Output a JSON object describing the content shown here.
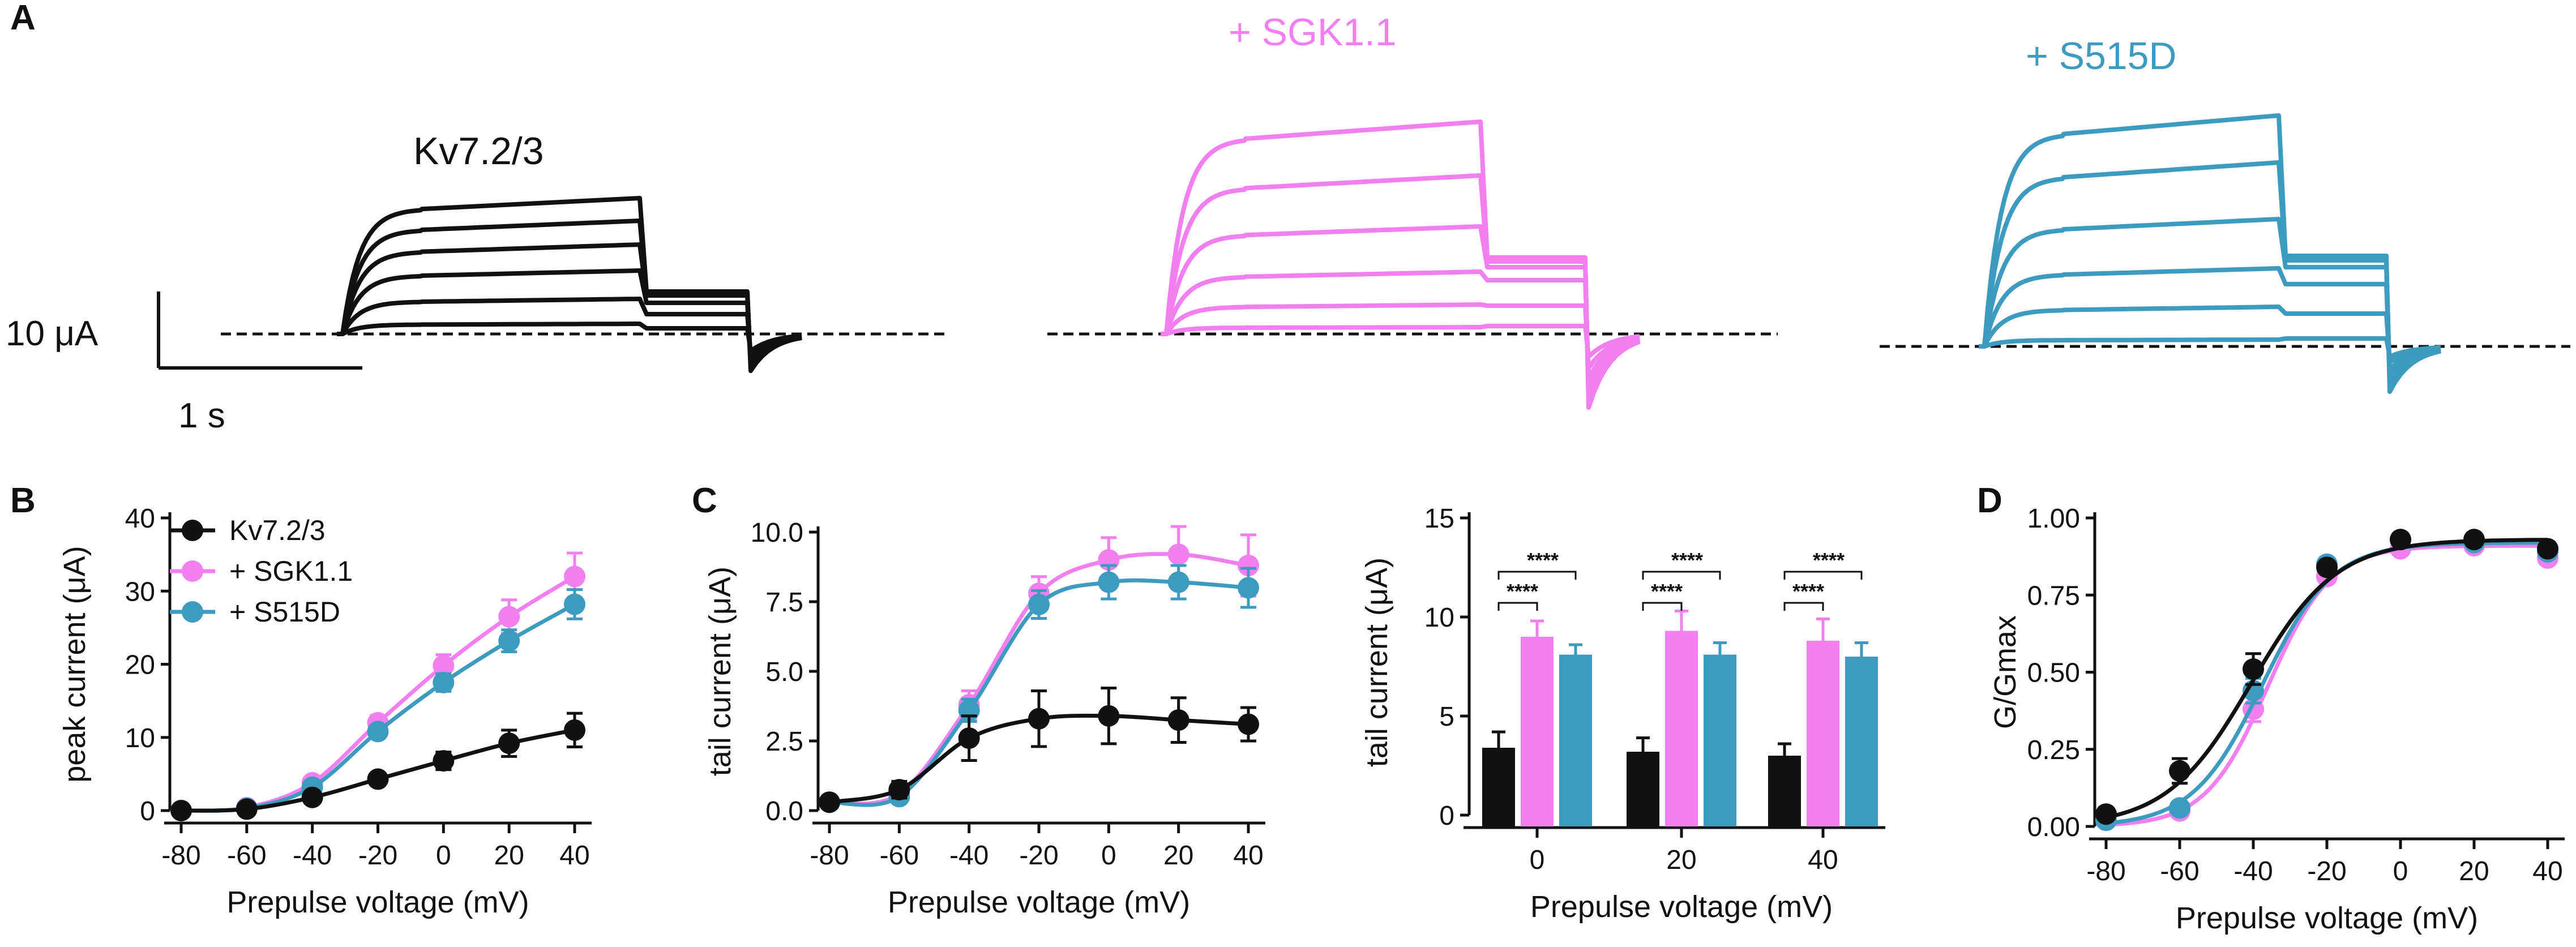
{
  "colors": {
    "kv": "#111111",
    "sgk": "#f27ff0",
    "s515d": "#3d9bbf"
  },
  "panel_letters": {
    "a": "A",
    "b": "B",
    "c": "C",
    "d": "D"
  },
  "traces": {
    "kv_title": "Kv7.2/3",
    "sgk_title": "+ SGK1.1",
    "s515d_title": "+ S515D",
    "scale_current": "10  μA",
    "scale_time": "1 s"
  },
  "chart_data": [
    {
      "id": "B",
      "type": "line",
      "title": "",
      "xlabel": "Prepulse voltage (mV)",
      "ylabel": "peak current (μA)",
      "xlim": [
        -80,
        40
      ],
      "ylim": [
        0,
        40
      ],
      "x_ticks": [
        -80,
        -60,
        -40,
        -20,
        0,
        20,
        40
      ],
      "y_ticks": [
        0,
        10,
        20,
        30,
        40
      ],
      "legend": [
        "Kv7.2/3",
        "+ SGK1.1",
        "+ S515D"
      ],
      "x": [
        -80,
        -60,
        -40,
        -20,
        0,
        20,
        40
      ],
      "series": [
        {
          "name": "Kv7.2/3",
          "values": [
            0,
            0.2,
            1.8,
            4.3,
            6.8,
            9.2,
            11.0
          ],
          "errors": [
            0.3,
            0.3,
            0.5,
            0.7,
            1.2,
            1.8,
            2.3
          ]
        },
        {
          "name": "+ SGK1.1",
          "values": [
            0,
            0.4,
            3.8,
            12.0,
            19.8,
            26.5,
            32.0
          ],
          "errors": [
            0.3,
            0.3,
            0.6,
            1.0,
            1.5,
            2.3,
            3.2
          ]
        },
        {
          "name": "+ S515D",
          "values": [
            0,
            0.3,
            3.2,
            10.8,
            17.5,
            23.2,
            28.2
          ],
          "errors": [
            0.3,
            0.3,
            0.5,
            0.8,
            1.2,
            1.5,
            2.0
          ]
        }
      ]
    },
    {
      "id": "C-left",
      "type": "line",
      "title": "",
      "xlabel": "Prepulse voltage (mV)",
      "ylabel": "tail current (μA)",
      "xlim": [
        -80,
        40
      ],
      "ylim": [
        0,
        10
      ],
      "x_ticks": [
        -80,
        -60,
        -40,
        -20,
        0,
        20,
        40
      ],
      "y_ticks": [
        "0.0",
        "2.5",
        "5.0",
        "7.5",
        "10.0"
      ],
      "x": [
        -80,
        -60,
        -40,
        -20,
        0,
        20,
        40
      ],
      "series": [
        {
          "name": "Kv7.2/3",
          "values": [
            0.3,
            0.75,
            2.6,
            3.3,
            3.4,
            3.25,
            3.1
          ],
          "errors": [
            0.2,
            0.3,
            0.8,
            1.0,
            1.0,
            0.8,
            0.6
          ]
        },
        {
          "name": "+ SGK1.1",
          "values": [
            0.3,
            0.6,
            3.8,
            7.8,
            9.0,
            9.2,
            8.8
          ],
          "errors": [
            0.2,
            0.2,
            0.5,
            0.6,
            0.8,
            1.0,
            1.1
          ]
        },
        {
          "name": "+ S515D",
          "values": [
            0.3,
            0.5,
            3.6,
            7.4,
            8.2,
            8.2,
            8.0
          ],
          "errors": [
            0.2,
            0.2,
            0.4,
            0.5,
            0.6,
            0.6,
            0.7
          ]
        }
      ]
    },
    {
      "id": "C-right",
      "type": "bar",
      "title": "",
      "xlabel": "Prepulse voltage (mV)",
      "ylabel": "tail current (μA)",
      "ylim": [
        0,
        15
      ],
      "y_ticks": [
        0,
        5,
        10,
        15
      ],
      "categories": [
        "0",
        "20",
        "40"
      ],
      "series": [
        {
          "name": "Kv7.2/3",
          "values": [
            3.4,
            3.2,
            3.0
          ],
          "errors": [
            0.8,
            0.7,
            0.6
          ]
        },
        {
          "name": "+ SGK1.1",
          "values": [
            9.0,
            9.3,
            8.8
          ],
          "errors": [
            0.8,
            1.0,
            1.1
          ]
        },
        {
          "name": "+ S515D",
          "values": [
            8.1,
            8.1,
            8.0
          ],
          "errors": [
            0.5,
            0.6,
            0.7
          ]
        }
      ],
      "significance": "****"
    },
    {
      "id": "D",
      "type": "line",
      "title": "",
      "xlabel": "Prepulse voltage (mV)",
      "ylabel": "G/Gmax",
      "xlim": [
        -80,
        40
      ],
      "ylim": [
        0,
        1
      ],
      "x_ticks": [
        -80,
        -60,
        -40,
        -20,
        0,
        20,
        40
      ],
      "y_ticks": [
        "0.00",
        "0.25",
        "0.50",
        "0.75",
        "1.00"
      ],
      "x": [
        -80,
        -60,
        -40,
        -20,
        0,
        20,
        40
      ],
      "series": [
        {
          "name": "Kv7.2/3",
          "values": [
            0.04,
            0.18,
            0.51,
            0.84,
            0.93,
            0.93,
            0.9
          ],
          "errors": [
            0.01,
            0.04,
            0.05,
            0.02,
            0.02,
            0.02,
            0.02
          ]
        },
        {
          "name": "+ SGK1.1",
          "values": [
            0.02,
            0.05,
            0.38,
            0.81,
            0.9,
            0.91,
            0.87
          ],
          "errors": [
            0.01,
            0.02,
            0.04,
            0.02,
            0.01,
            0.01,
            0.02
          ]
        },
        {
          "name": "+ S515D",
          "values": [
            0.02,
            0.06,
            0.44,
            0.85,
            0.93,
            0.92,
            0.89
          ],
          "errors": [
            0.01,
            0.02,
            0.04,
            0.02,
            0.01,
            0.01,
            0.02
          ]
        }
      ]
    }
  ]
}
